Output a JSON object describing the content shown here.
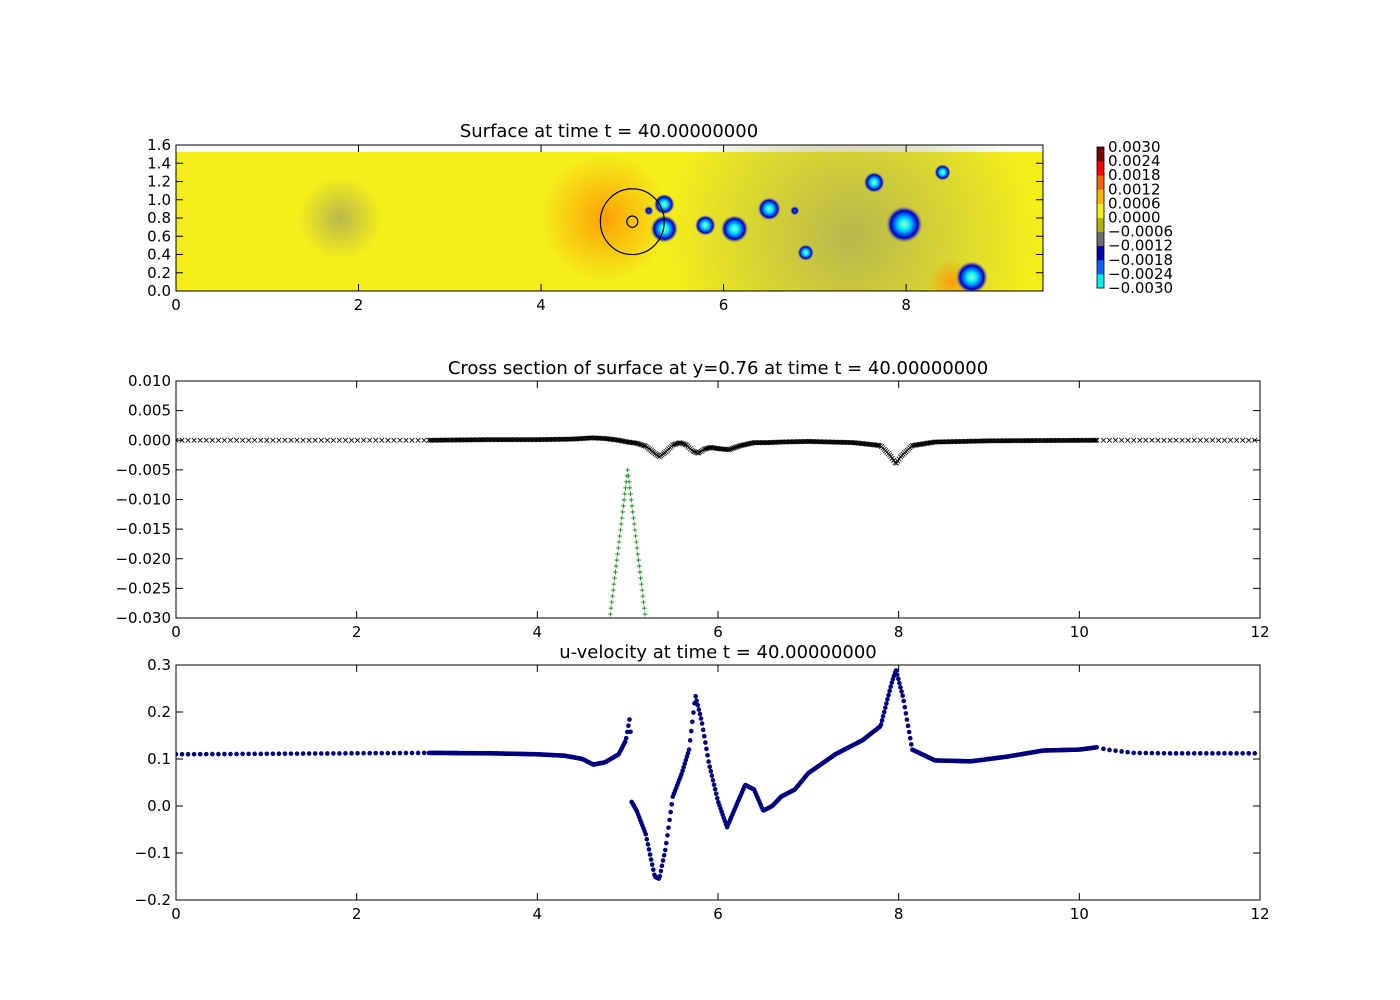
{
  "chart_data": [
    {
      "id": "surface",
      "type": "heatmap",
      "title": "Surface at time t =    40.00000000",
      "xlim": [
        0,
        9.5
      ],
      "ylim": [
        0,
        1.6
      ],
      "domain_ymax": 1.52,
      "xticks": [
        {
          "value": 0,
          "label": "0"
        },
        {
          "value": 2,
          "label": "2"
        },
        {
          "value": 4,
          "label": "4"
        },
        {
          "value": 6,
          "label": "6"
        },
        {
          "value": 8,
          "label": "8"
        }
      ],
      "yticks": [
        {
          "value": 0.0,
          "label": "0.0"
        },
        {
          "value": 0.2,
          "label": "0.2"
        },
        {
          "value": 0.4,
          "label": "0.4"
        },
        {
          "value": 0.6,
          "label": "0.6"
        },
        {
          "value": 0.8,
          "label": "0.8"
        },
        {
          "value": 1.0,
          "label": "1.0"
        },
        {
          "value": 1.2,
          "label": "1.2"
        },
        {
          "value": 1.4,
          "label": "1.4"
        },
        {
          "value": 1.6,
          "label": "1.6"
        }
      ],
      "background_color": "#f4ee1a",
      "regions": [
        {
          "x": 1.8,
          "y": 0.8,
          "r": 0.45,
          "value": -0.0003
        },
        {
          "x": 4.7,
          "y": 0.8,
          "r": 0.7,
          "value": 0.0004
        },
        {
          "x": 7.4,
          "y": 0.6,
          "r": 2.0,
          "value": -0.0005
        },
        {
          "x": 8.5,
          "y": 0.1,
          "r": 0.25,
          "value": 0.0003
        }
      ],
      "vortices": [
        {
          "x": 5.35,
          "y": 0.95,
          "r": 0.09,
          "value": -0.0024
        },
        {
          "x": 5.35,
          "y": 0.68,
          "r": 0.12,
          "value": -0.0027
        },
        {
          "x": 5.18,
          "y": 0.88,
          "r": 0.04,
          "value": -0.0015
        },
        {
          "x": 5.8,
          "y": 0.72,
          "r": 0.09,
          "value": -0.0022
        },
        {
          "x": 6.12,
          "y": 0.68,
          "r": 0.12,
          "value": -0.0025
        },
        {
          "x": 6.5,
          "y": 0.9,
          "r": 0.1,
          "value": -0.0023
        },
        {
          "x": 6.78,
          "y": 0.88,
          "r": 0.04,
          "value": -0.0014
        },
        {
          "x": 6.9,
          "y": 0.42,
          "r": 0.07,
          "value": -0.002
        },
        {
          "x": 7.65,
          "y": 1.19,
          "r": 0.09,
          "value": -0.0023
        },
        {
          "x": 7.98,
          "y": 0.73,
          "r": 0.16,
          "value": -0.0028
        },
        {
          "x": 8.4,
          "y": 1.3,
          "r": 0.07,
          "value": -0.002
        },
        {
          "x": 8.72,
          "y": 0.15,
          "r": 0.14,
          "value": -0.0027
        }
      ],
      "markers": [
        {
          "shape": "circle",
          "x": 5.0,
          "y": 0.76,
          "r": 0.35
        },
        {
          "shape": "circle",
          "x": 5.0,
          "y": 0.76,
          "r": 0.06
        }
      ],
      "colorbar": {
        "range": [
          -0.003,
          0.003
        ],
        "tick_values": [
          0.003,
          0.0024,
          0.0018,
          0.0012,
          0.0006,
          0.0,
          -0.0006,
          -0.0012,
          -0.0018,
          -0.0024,
          -0.003
        ],
        "tick_labels": [
          "0.0030",
          "0.0024",
          "0.0018",
          "0.0012",
          "0.0006",
          "0.0000",
          "−0.0006",
          "−0.0012",
          "−0.0018",
          "−0.0024",
          "−0.0030"
        ],
        "colors_bottom_to_top": [
          "#00f0f0",
          "#0064ff",
          "#0000b4",
          "#6e6e6e",
          "#b4b400",
          "#f4ee1a",
          "#ffb400",
          "#ff6400",
          "#ff0000",
          "#780000"
        ]
      }
    },
    {
      "id": "cross-section",
      "type": "scatter",
      "title": "Cross section of surface at y=0.76 at time t =    40.00000000",
      "xlim": [
        0,
        12
      ],
      "ylim": [
        -0.03,
        0.01
      ],
      "xticks": [
        {
          "value": 0,
          "label": "0"
        },
        {
          "value": 2,
          "label": "2"
        },
        {
          "value": 4,
          "label": "4"
        },
        {
          "value": 6,
          "label": "6"
        },
        {
          "value": 8,
          "label": "8"
        },
        {
          "value": 10,
          "label": "10"
        },
        {
          "value": 12,
          "label": "12"
        }
      ],
      "yticks": [
        {
          "value": 0.01,
          "label": "0.010"
        },
        {
          "value": 0.005,
          "label": "0.005"
        },
        {
          "value": 0.0,
          "label": "0.000"
        },
        {
          "value": -0.005,
          "label": "−0.005"
        },
        {
          "value": -0.01,
          "label": "−0.010"
        },
        {
          "value": -0.015,
          "label": "−0.015"
        },
        {
          "value": -0.02,
          "label": "−0.020"
        },
        {
          "value": -0.025,
          "label": "−0.025"
        },
        {
          "value": -0.03,
          "label": "−0.030"
        }
      ],
      "series": [
        {
          "marker": "x",
          "color": "#000000",
          "coarse_spacing": 0.067,
          "fine_spacing": 0.015,
          "fine_range": [
            2.8,
            10.2
          ],
          "profile": [
            [
              0,
              0.0
            ],
            [
              2.8,
              0.0
            ],
            [
              3.5,
              0.0001
            ],
            [
              4.0,
              0.0001
            ],
            [
              4.4,
              0.0002
            ],
            [
              4.6,
              0.0004
            ],
            [
              4.75,
              0.0003
            ],
            [
              4.9,
              0.0
            ],
            [
              5.0,
              -0.0003
            ],
            [
              5.1,
              -0.0005
            ],
            [
              5.2,
              -0.001
            ],
            [
              5.3,
              -0.0022
            ],
            [
              5.35,
              -0.0028
            ],
            [
              5.42,
              -0.002
            ],
            [
              5.5,
              -0.0008
            ],
            [
              5.58,
              -0.0004
            ],
            [
              5.65,
              -0.0008
            ],
            [
              5.72,
              -0.0018
            ],
            [
              5.78,
              -0.0022
            ],
            [
              5.85,
              -0.0015
            ],
            [
              5.92,
              -0.0012
            ],
            [
              6.0,
              -0.0014
            ],
            [
              6.12,
              -0.0016
            ],
            [
              6.25,
              -0.0009
            ],
            [
              6.4,
              -0.0004
            ],
            [
              6.55,
              -0.0004
            ],
            [
              6.7,
              -0.0003
            ],
            [
              7.0,
              -0.0002
            ],
            [
              7.5,
              -0.0004
            ],
            [
              7.8,
              -0.0009
            ],
            [
              7.92,
              -0.0028
            ],
            [
              7.97,
              -0.004
            ],
            [
              8.02,
              -0.0028
            ],
            [
              8.15,
              -0.0009
            ],
            [
              8.4,
              -0.0003
            ],
            [
              9.0,
              -0.0001
            ],
            [
              10.2,
              0.0
            ],
            [
              12,
              0.0
            ]
          ]
        },
        {
          "marker": "+",
          "color": "#007f00",
          "x_range": [
            4.8,
            5.2
          ],
          "spacing": 0.008,
          "center": 5.0,
          "peak": -0.005,
          "half_width": 0.205,
          "edge_value": -0.031
        }
      ]
    },
    {
      "id": "u-velocity",
      "type": "scatter",
      "title": "u-velocity at time t =    40.00000000",
      "xlim": [
        0,
        12
      ],
      "ylim": [
        -0.2,
        0.3
      ],
      "xticks": [
        {
          "value": 0,
          "label": "0"
        },
        {
          "value": 2,
          "label": "2"
        },
        {
          "value": 4,
          "label": "4"
        },
        {
          "value": 6,
          "label": "6"
        },
        {
          "value": 8,
          "label": "8"
        },
        {
          "value": 10,
          "label": "10"
        },
        {
          "value": 12,
          "label": "12"
        }
      ],
      "yticks": [
        {
          "value": 0.3,
          "label": "0.3"
        },
        {
          "value": 0.2,
          "label": "0.2"
        },
        {
          "value": 0.1,
          "label": "0.1"
        },
        {
          "value": 0.0,
          "label": "0.0"
        },
        {
          "value": -0.1,
          "label": "−0.1"
        },
        {
          "value": -0.2,
          "label": "−0.2"
        }
      ],
      "series": [
        {
          "marker": "o",
          "color": "#00007f",
          "coarse_spacing": 0.067,
          "fine_spacing": 0.012,
          "fine_range": [
            2.8,
            10.2
          ],
          "profile": [
            [
              0,
              0.11
            ],
            [
              2.8,
              0.113
            ],
            [
              3.5,
              0.112
            ],
            [
              4.0,
              0.11
            ],
            [
              4.3,
              0.107
            ],
            [
              4.5,
              0.1
            ],
            [
              4.62,
              0.088
            ],
            [
              4.75,
              0.093
            ],
            [
              4.9,
              0.11
            ],
            [
              4.98,
              0.14
            ],
            [
              5.03,
              0.195
            ],
            [
              5.04,
              0.01
            ],
            [
              5.1,
              -0.01
            ],
            [
              5.2,
              -0.06
            ],
            [
              5.3,
              -0.15
            ],
            [
              5.35,
              -0.155
            ],
            [
              5.42,
              -0.09
            ],
            [
              5.5,
              0.02
            ],
            [
              5.6,
              0.07
            ],
            [
              5.68,
              0.12
            ],
            [
              5.75,
              0.235
            ],
            [
              5.82,
              0.18
            ],
            [
              5.9,
              0.09
            ],
            [
              6.0,
              0.01
            ],
            [
              6.1,
              -0.045
            ],
            [
              6.2,
              0.0
            ],
            [
              6.3,
              0.045
            ],
            [
              6.4,
              0.035
            ],
            [
              6.5,
              -0.01
            ],
            [
              6.6,
              0.0
            ],
            [
              6.7,
              0.02
            ],
            [
              6.85,
              0.035
            ],
            [
              7.0,
              0.07
            ],
            [
              7.3,
              0.11
            ],
            [
              7.6,
              0.14
            ],
            [
              7.8,
              0.17
            ],
            [
              7.92,
              0.26
            ],
            [
              7.97,
              0.29
            ],
            [
              8.05,
              0.23
            ],
            [
              8.15,
              0.12
            ],
            [
              8.4,
              0.097
            ],
            [
              8.8,
              0.095
            ],
            [
              9.2,
              0.105
            ],
            [
              9.6,
              0.118
            ],
            [
              10.0,
              0.12
            ],
            [
              10.2,
              0.125
            ],
            [
              10.3,
              0.12
            ],
            [
              10.6,
              0.113
            ],
            [
              11.0,
              0.112
            ],
            [
              12,
              0.112
            ]
          ]
        }
      ]
    }
  ]
}
